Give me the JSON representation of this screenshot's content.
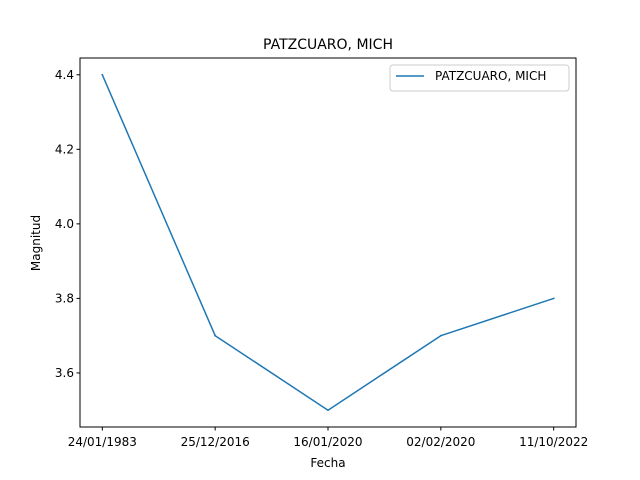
{
  "chart_data": {
    "type": "line",
    "title": "PATZCUARO, MICH",
    "xlabel": "Fecha",
    "ylabel": "Magnitud",
    "categories": [
      "24/01/1983",
      "25/12/2016",
      "16/01/2020",
      "02/02/2020",
      "11/10/2022"
    ],
    "series": [
      {
        "name": "PATZCUARO, MICH",
        "values": [
          4.4,
          3.7,
          3.5,
          3.7,
          3.8
        ],
        "color": "#1f77b4"
      }
    ],
    "yticks": [
      "3.6",
      "3.8",
      "4.0",
      "4.2",
      "4.4"
    ],
    "ylim": [
      3.455,
      4.445
    ],
    "grid": false,
    "legend_position": "upper-right"
  }
}
